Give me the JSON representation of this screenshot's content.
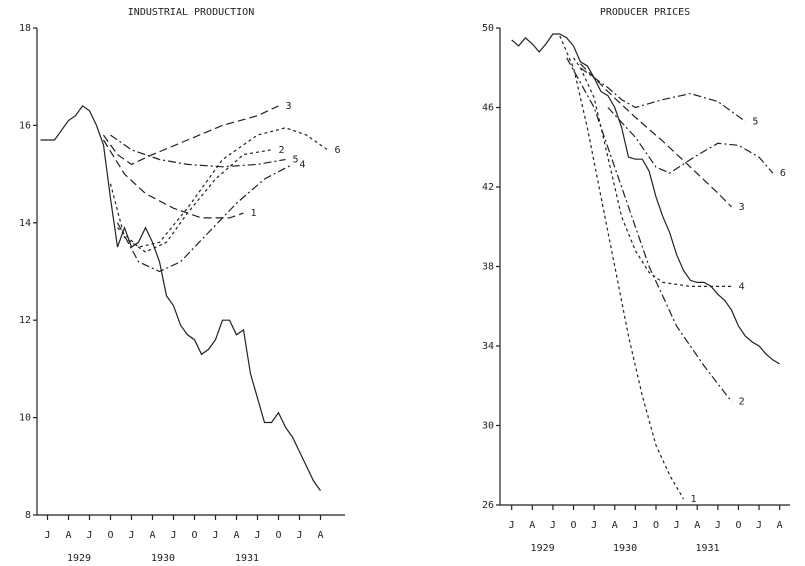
{
  "chart_data": [
    {
      "type": "line",
      "title": "INDUSTRIAL PRODUCTION",
      "xlim": [
        -1.5,
        42.5
      ],
      "ylim": [
        8,
        18
      ],
      "yticks": [
        8,
        10,
        12,
        14,
        16,
        18
      ],
      "xticks": [
        {
          "value": 0,
          "label": "J"
        },
        {
          "value": 3,
          "label": "A"
        },
        {
          "value": 6,
          "label": "J"
        },
        {
          "value": 9,
          "label": "O"
        },
        {
          "value": 12,
          "label": "J"
        },
        {
          "value": 15,
          "label": "A"
        },
        {
          "value": 18,
          "label": "J"
        },
        {
          "value": 21,
          "label": "O"
        },
        {
          "value": 24,
          "label": "J"
        },
        {
          "value": 27,
          "label": "A"
        },
        {
          "value": 30,
          "label": "J"
        },
        {
          "value": 33,
          "label": "O"
        },
        {
          "value": 36,
          "label": "J"
        },
        {
          "value": 39,
          "label": "A"
        }
      ],
      "x_year_labels": [
        {
          "value": 4.5,
          "label": "1929"
        },
        {
          "value": 16.5,
          "label": "1930"
        },
        {
          "value": 28.5,
          "label": "1931"
        }
      ],
      "series": [
        {
          "color": "#222",
          "dash": "solid",
          "x": [
            -1,
            0,
            1,
            2,
            3,
            4,
            5,
            6,
            7,
            8,
            9,
            10,
            11,
            12,
            13,
            14,
            15,
            16,
            17,
            18,
            19,
            20,
            21,
            22,
            23,
            24,
            25,
            26,
            27,
            28,
            29,
            30,
            31,
            32,
            33,
            34,
            35,
            36,
            37,
            38,
            39
          ],
          "values": [
            15.7,
            15.7,
            15.7,
            15.9,
            16.1,
            16.2,
            16.4,
            16.3,
            16.0,
            15.6,
            14.5,
            13.5,
            13.9,
            13.5,
            13.6,
            13.9,
            13.6,
            13.2,
            12.5,
            12.3,
            11.9,
            11.7,
            11.6,
            11.3,
            11.4,
            11.6,
            12.0,
            12.0,
            11.7,
            11.8,
            10.9,
            10.4,
            9.9,
            9.9,
            10.1,
            9.8,
            9.6,
            9.3,
            9.0,
            8.7,
            8.5
          ]
        },
        {
          "name": "1",
          "color": "#222",
          "dash": "dashed",
          "x": [
            8,
            11,
            14,
            18,
            22,
            26,
            28
          ],
          "values": [
            15.7,
            15.0,
            14.6,
            14.3,
            14.1,
            14.1,
            14.2
          ]
        },
        {
          "name": "2",
          "color": "#222",
          "dash": "dotted",
          "x": [
            9,
            11,
            14,
            17,
            20,
            24,
            28,
            32
          ],
          "values": [
            14.8,
            13.7,
            13.4,
            13.6,
            14.2,
            14.9,
            15.4,
            15.5
          ]
        },
        {
          "name": "3",
          "color": "#222",
          "dash": "dashed",
          "x": [
            8,
            10,
            12,
            15,
            20,
            25,
            30,
            33
          ],
          "values": [
            15.8,
            15.4,
            15.2,
            15.4,
            15.7,
            16.0,
            16.2,
            16.4
          ]
        },
        {
          "name": "4",
          "color": "#222",
          "dash": "dashdot",
          "x": [
            10,
            13,
            16,
            19,
            23,
            27,
            31,
            35
          ],
          "values": [
            14.0,
            13.2,
            13.0,
            13.2,
            13.8,
            14.4,
            14.9,
            15.2
          ]
        },
        {
          "name": "5",
          "color": "#222",
          "dash": "dashdot",
          "x": [
            9,
            12,
            16,
            20,
            25,
            30,
            34
          ],
          "values": [
            15.8,
            15.5,
            15.3,
            15.2,
            15.15,
            15.2,
            15.3
          ]
        },
        {
          "name": "6",
          "color": "#222",
          "dash": "dotted",
          "x": [
            10,
            13,
            16,
            20,
            25,
            30,
            34,
            37,
            40
          ],
          "values": [
            13.9,
            13.5,
            13.6,
            14.3,
            15.3,
            15.8,
            15.95,
            15.8,
            15.5
          ]
        }
      ]
    },
    {
      "type": "line",
      "title": "PRODUCER PRICES",
      "xlim": [
        -1.7,
        40.5
      ],
      "ylim": [
        26,
        50
      ],
      "yticks": [
        26,
        30,
        34,
        38,
        42,
        46,
        50
      ],
      "xticks": [
        {
          "value": 0,
          "label": "J"
        },
        {
          "value": 3,
          "label": "A"
        },
        {
          "value": 6,
          "label": "J"
        },
        {
          "value": 9,
          "label": "O"
        },
        {
          "value": 12,
          "label": "J"
        },
        {
          "value": 15,
          "label": "A"
        },
        {
          "value": 18,
          "label": "J"
        },
        {
          "value": 21,
          "label": "O"
        },
        {
          "value": 24,
          "label": "J"
        },
        {
          "value": 27,
          "label": "A"
        },
        {
          "value": 30,
          "label": "J"
        },
        {
          "value": 33,
          "label": "O"
        },
        {
          "value": 36,
          "label": "J"
        },
        {
          "value": 39,
          "label": "A"
        }
      ],
      "x_year_labels": [
        {
          "value": 4.5,
          "label": "1929"
        },
        {
          "value": 16.5,
          "label": "1930"
        },
        {
          "value": 28.5,
          "label": "1931"
        }
      ],
      "series": [
        {
          "color": "#222",
          "dash": "solid",
          "x": [
            0,
            1,
            2,
            3,
            4,
            5,
            6,
            7,
            8,
            9,
            10,
            11,
            12,
            13,
            14,
            15,
            16,
            17,
            18,
            19,
            20,
            21,
            22,
            23,
            24,
            25,
            26,
            27,
            28,
            29,
            30,
            31,
            32,
            33,
            34,
            35,
            36,
            37,
            38,
            39
          ],
          "values": [
            49.4,
            49.1,
            49.5,
            49.2,
            48.8,
            49.2,
            49.7,
            49.7,
            49.5,
            49.1,
            48.3,
            48.1,
            47.5,
            46.8,
            46.6,
            46.0,
            45.0,
            43.5,
            43.4,
            43.4,
            42.8,
            41.5,
            40.5,
            39.7,
            38.6,
            37.8,
            37.3,
            37.2,
            37.2,
            37.0,
            36.6,
            36.3,
            35.8,
            35.0,
            34.5,
            34.2,
            34.0,
            33.6,
            33.3,
            33.1
          ]
        },
        {
          "name": "1",
          "color": "#222",
          "dash": "dotted",
          "x": [
            7,
            9,
            11,
            13,
            15,
            17,
            19,
            21,
            23,
            25
          ],
          "values": [
            49.6,
            48,
            45,
            41.5,
            38,
            34.5,
            31.5,
            29,
            27.5,
            26.3
          ]
        },
        {
          "name": "2",
          "color": "#222",
          "dash": "dashdot",
          "x": [
            8,
            12,
            16,
            20,
            24,
            28,
            32
          ],
          "values": [
            48.5,
            46,
            42,
            38,
            35,
            33,
            31.2
          ]
        },
        {
          "name": "3",
          "color": "#222",
          "dash": "dashed",
          "x": [
            10,
            14,
            18,
            22,
            26,
            30,
            32
          ],
          "values": [
            48.2,
            46.8,
            45.5,
            44.3,
            43,
            41.7,
            41
          ]
        },
        {
          "name": "4",
          "color": "#222",
          "dash": "dotted",
          "x": [
            9,
            10,
            12,
            14,
            16,
            18,
            20,
            22,
            26,
            32
          ],
          "values": [
            48.5,
            48,
            46.5,
            43.5,
            40.5,
            38.8,
            37.7,
            37.2,
            37.0,
            37.0
          ]
        },
        {
          "name": "5",
          "color": "#222",
          "dash": "dashdot",
          "x": [
            10,
            14,
            16,
            18,
            22,
            26,
            30,
            34
          ],
          "values": [
            48,
            47,
            46.4,
            46.0,
            46.4,
            46.7,
            46.3,
            45.3
          ]
        },
        {
          "name": "6",
          "color": "#222",
          "dash": "dashdot",
          "x": [
            14,
            18,
            21,
            23,
            27,
            30,
            33,
            36,
            38
          ],
          "values": [
            46,
            44.5,
            43,
            42.7,
            43.6,
            44.2,
            44.1,
            43.5,
            42.7
          ]
        }
      ]
    }
  ]
}
